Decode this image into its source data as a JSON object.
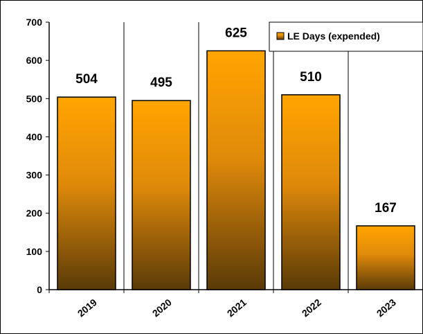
{
  "chart_data": {
    "type": "bar",
    "categories": [
      "2019",
      "2020",
      "2021",
      "2022",
      "2023"
    ],
    "series": [
      {
        "name": "LE Days (expended)",
        "values": [
          504,
          495,
          625,
          510,
          167
        ]
      }
    ],
    "data_labels": [
      "504",
      "495",
      "625",
      "510",
      "167"
    ],
    "ylim": [
      0,
      700
    ],
    "y_ticks": [
      "0",
      "100",
      "200",
      "300",
      "400",
      "500",
      "600",
      "700"
    ],
    "grid": "vertical",
    "legend_position": "top-right",
    "colors": {
      "bar_top": "#ffa500",
      "bar_mid": "#e08a0a",
      "bar_bottom": "#5a3a08",
      "bar_stroke": "#000000",
      "grid": "#000000"
    }
  }
}
